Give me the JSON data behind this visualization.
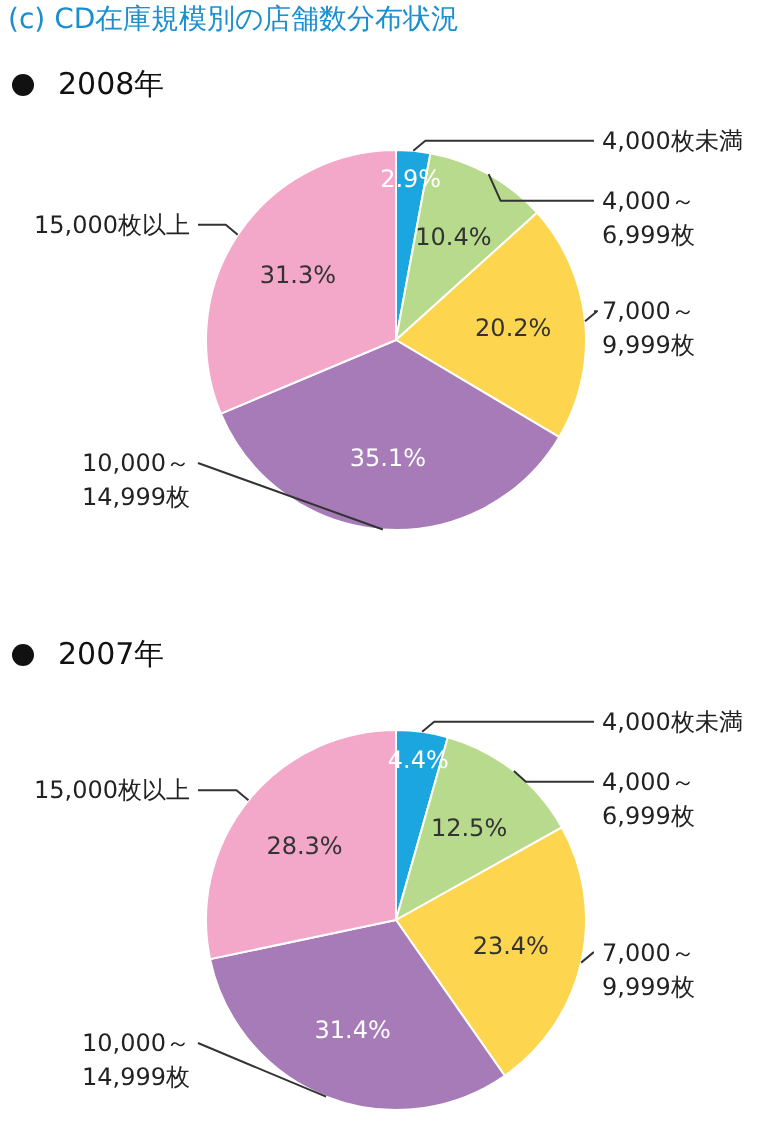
{
  "chart_data": [
    {
      "type": "pie",
      "title": "(c) CD在庫規模別の店舗数分布状況",
      "subtitle": "2008年",
      "categories": [
        "4,000枚未満",
        "4,000～\n6,999枚",
        "7,000～\n9,999枚",
        "10,000～\n14,999枚",
        "15,000枚以上"
      ],
      "values": [
        2.9,
        10.4,
        20.2,
        35.1,
        31.3
      ],
      "value_labels": [
        "2.9%",
        "10.4%",
        "20.2%",
        "35.1%",
        "31.3%"
      ],
      "colors": [
        "#1ba6df",
        "#b8da8c",
        "#fdd54f",
        "#a67bb7",
        "#f3a7c9"
      ]
    },
    {
      "type": "pie",
      "subtitle": "2007年",
      "categories": [
        "4,000枚未満",
        "4,000～\n6,999枚",
        "7,000～\n9,999枚",
        "10,000～\n14,999枚",
        "15,000枚以上"
      ],
      "values": [
        4.4,
        12.5,
        23.4,
        31.4,
        28.3
      ],
      "value_labels": [
        "4.4%",
        "12.5%",
        "23.4%",
        "31.4%",
        "28.3%"
      ],
      "colors": [
        "#1ba6df",
        "#b8da8c",
        "#fdd54f",
        "#a67bb7",
        "#f3a7c9"
      ]
    }
  ]
}
